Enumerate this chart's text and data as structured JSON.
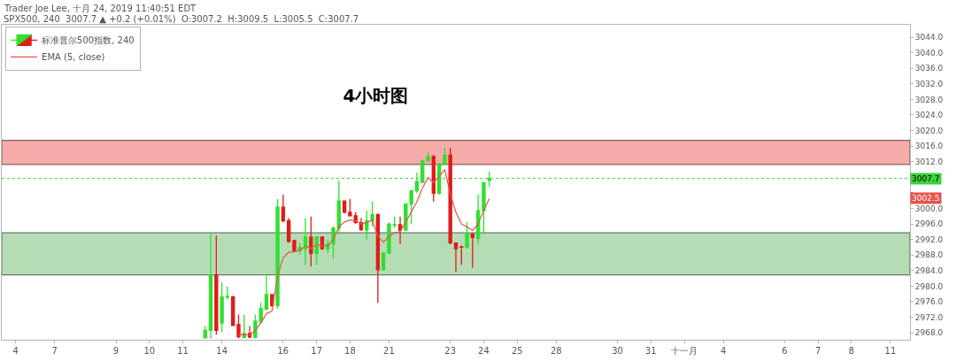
{
  "chart_data": {
    "type": "candlestick",
    "title": "4小时图",
    "annotations": [
      "Trader Joe Lee, 十月 24, 2019 11:40:51 EDT",
      "SPX500, 240  3007.7 ▲ +0.2 (+0.01%)  O:3007.2  H:3009.5  L:3005.5  C:3007.7",
      "3002.5"
    ],
    "categories": [
      null,
      null,
      "4",
      null,
      null,
      null,
      null,
      null,
      null,
      "7",
      null,
      null,
      null,
      null,
      null,
      null,
      null,
      null,
      null,
      null,
      "9",
      null,
      null,
      null,
      null,
      null,
      "10",
      null,
      null,
      null,
      null,
      null,
      "11",
      null,
      null,
      null,
      null,
      null,
      null,
      "14",
      null,
      null,
      null,
      null,
      null,
      null,
      null,
      null,
      null,
      null,
      "16",
      null,
      null,
      null,
      null,
      null,
      "17",
      null,
      null,
      null,
      null,
      null,
      "18",
      null,
      null,
      null,
      null,
      null,
      null,
      "21",
      null,
      null,
      null,
      null,
      null,
      null,
      null,
      null,
      null,
      null,
      "23",
      null,
      null,
      null,
      null,
      null,
      "24",
      null,
      null,
      null,
      null,
      null,
      "25",
      null,
      null,
      null,
      null,
      null,
      null,
      "28",
      null,
      null,
      null,
      null,
      null,
      null,
      null,
      null,
      null,
      null,
      "30",
      null,
      null,
      null,
      null,
      null,
      "31",
      null,
      null,
      null,
      null,
      null,
      "十一月",
      null,
      null,
      null,
      null,
      null,
      null,
      "4",
      null,
      null,
      null,
      null,
      null,
      null,
      null,
      null,
      null,
      null,
      "6",
      null,
      null,
      null,
      null,
      null,
      "7",
      null,
      null,
      null,
      null,
      null,
      "8",
      null,
      null,
      null,
      null,
      null,
      null,
      "11",
      null,
      null,
      null
    ],
    "series": [
      {
        "name": "标准普尔500指数, 240",
        "ohlc": [
          null,
          null,
          null,
          null,
          null,
          null,
          null,
          null,
          null,
          null,
          null,
          null,
          null,
          null,
          null,
          null,
          null,
          null,
          null,
          null,
          null,
          null,
          null,
          null,
          null,
          null,
          null,
          null,
          null,
          null,
          null,
          null,
          null,
          null,
          null,
          null,
          [
            2966.7,
            2969.7,
            2966.6,
            2968.6
          ],
          [
            2968.6,
            2993.4,
            2966.6,
            2982.9
          ],
          [
            2982.9,
            2993.0,
            2967.5,
            2968.6
          ],
          [
            2970.5,
            2981.0,
            2968.2,
            2977.2
          ],
          [
            2977.2,
            2979.9,
            2976.5,
            2977.4
          ],
          [
            2977.2,
            2977.5,
            2969.7,
            2969.9
          ],
          [
            2970.1,
            2972.7,
            2966.6,
            2967.0
          ],
          [
            2966.8,
            2972.7,
            2966.6,
            2967.8
          ],
          [
            2967.8,
            2969.7,
            2966.6,
            2966.9
          ],
          [
            2966.8,
            2972.7,
            2966.6,
            2971.0
          ],
          [
            2970.8,
            2975.7,
            2970.5,
            2974.2
          ],
          [
            2974.1,
            2982.9,
            2973.8,
            2977.8
          ],
          [
            2977.8,
            2978.0,
            2974.6,
            2975.0
          ],
          [
            2975.0,
            3002.4,
            2974.2,
            3000.3
          ],
          [
            3000.3,
            3003.5,
            2996.4,
            2996.8
          ],
          [
            2996.8,
            2997.5,
            2991.1,
            2991.5
          ],
          [
            2991.7,
            2991.9,
            2988.9,
            2989.1
          ],
          [
            2989.1,
            2991.1,
            2988.1,
            2989.9
          ],
          [
            2989.6,
            2997.5,
            2985.5,
            2992.6
          ],
          [
            2992.6,
            2997.9,
            2985.1,
            2988.4
          ],
          [
            2988.4,
            2992.8,
            2985.5,
            2992.6
          ],
          [
            2992.6,
            2992.8,
            2989.3,
            2989.6
          ],
          [
            2989.6,
            2991.9,
            2988.5,
            2990.8
          ],
          [
            2990.8,
            2995.3,
            2987.0,
            2994.9
          ],
          [
            2994.9,
            3007.1,
            2993.4,
            3001.9
          ],
          [
            3001.9,
            3002.0,
            2998.7,
            2999.0
          ],
          [
            2999.0,
            3002.4,
            2997.9,
            2998.1
          ],
          [
            2998.1,
            2999.0,
            2996.0,
            2996.4
          ],
          [
            2996.3,
            2997.5,
            2994.2,
            2994.5
          ],
          [
            2994.4,
            2999.4,
            2991.9,
            2996.8
          ],
          [
            2996.8,
            3001.7,
            2995.3,
            2998.4
          ],
          [
            2998.4,
            2998.6,
            2975.7,
            2984.2
          ],
          [
            2984.2,
            2988.7,
            2984.0,
            2988.5
          ],
          [
            2988.5,
            2996.4,
            2988.1,
            2995.9
          ],
          [
            2995.7,
            2997.9,
            2994.9,
            2995.8
          ],
          [
            2995.8,
            2997.9,
            2990.8,
            2994.4
          ],
          [
            2994.4,
            3001.2,
            2994.2,
            3001.1
          ],
          [
            3001.1,
            3004.7,
            2996.0,
            3004.5
          ],
          [
            3004.5,
            3009.2,
            3003.9,
            3006.9
          ],
          [
            3006.7,
            3012.6,
            3006.6,
            3012.2
          ],
          [
            3012.2,
            3014.5,
            3012.1,
            3013.3
          ],
          [
            3013.3,
            3013.7,
            3001.7,
            3003.9
          ],
          [
            3003.9,
            3011.8,
            3003.5,
            3011.4
          ],
          [
            3011.4,
            3015.6,
            3011.1,
            3013.7
          ],
          [
            3013.7,
            3015.6,
            2990.8,
            2991.1
          ],
          [
            2991.1,
            2991.2,
            2983.6,
            2989.6
          ],
          [
            2990.1,
            2990.4,
            2985.5,
            2990.0
          ],
          [
            2990.0,
            2996.4,
            2989.6,
            2993.6
          ],
          [
            2993.4,
            2993.5,
            2984.7,
            2992.5
          ],
          [
            2992.3,
            3003.5,
            2990.8,
            2999.4
          ],
          [
            2999.4,
            3006.7,
            2993.8,
            3006.6
          ],
          [
            3007.2,
            3009.5,
            3005.5,
            3007.7
          ],
          null,
          null,
          null,
          null,
          null,
          null,
          null,
          null,
          null,
          null,
          null,
          null,
          null,
          null,
          null,
          null,
          null,
          null,
          null,
          null,
          null,
          null,
          null,
          null,
          null,
          null,
          null,
          null,
          null,
          null,
          null,
          null,
          null,
          null,
          null,
          null,
          null,
          null,
          null,
          null,
          null,
          null,
          null,
          null,
          null,
          null,
          null,
          null,
          null,
          null,
          null,
          null,
          null,
          null,
          null,
          null,
          null,
          null,
          null,
          null,
          null,
          null,
          null,
          null,
          null,
          null,
          null,
          null,
          null,
          null,
          null,
          null,
          null,
          null,
          null
        ],
        "colors": [
          null,
          null,
          null,
          null,
          null,
          null,
          null,
          null,
          null,
          null,
          null,
          null,
          null,
          null,
          null,
          null,
          null,
          null,
          null,
          null,
          null,
          null,
          null,
          null,
          null,
          null,
          null,
          null,
          null,
          null,
          null,
          null,
          null,
          null,
          null,
          null,
          "#2fe02f",
          "#2fe02f",
          "#e01b1b",
          "#2fe02f",
          "#2fe02f",
          "#e01b1b",
          "#e01b1b",
          "#2fe02f",
          "#e01b1b",
          "#2fe02f",
          "#2fe02f",
          "#2fe02f",
          "#e01b1b",
          "#2fe02f",
          "#e01b1b",
          "#e01b1b",
          "#e01b1b",
          "#2fe02f",
          "#2fe02f",
          "#e01b1b",
          "#2fe02f",
          "#e01b1b",
          "#2fe02f",
          "#2fe02f",
          "#2fe02f",
          "#e01b1b",
          "#e01b1b",
          "#e01b1b",
          "#e01b1b",
          "#2fe02f",
          "#2fe02f",
          "#e01b1b",
          "#2fe02f",
          "#2fe02f",
          "#2fe02f",
          "#e01b1b",
          "#2fe02f",
          "#2fe02f",
          "#2fe02f",
          "#2fe02f",
          "#2fe02f",
          "#e01b1b",
          "#2fe02f",
          "#2fe02f",
          "#e01b1b",
          "#e01b1b",
          "#e01b1b",
          "#2fe02f",
          "#e01b1b",
          "#2fe02f",
          "#2fe02f",
          "#2fe02f",
          null,
          null,
          null,
          null,
          null,
          null,
          null,
          null,
          null,
          null,
          null,
          null,
          null,
          null,
          null,
          null,
          null,
          null,
          null,
          null,
          null,
          null,
          null,
          null,
          null,
          null,
          null,
          null,
          null,
          null,
          null,
          null,
          null,
          null,
          null,
          null,
          null,
          null,
          null,
          null,
          null,
          null,
          null,
          null,
          null,
          null,
          null,
          null,
          null,
          null,
          null,
          null,
          null,
          null,
          null,
          null,
          null,
          null,
          null,
          null,
          null,
          null,
          null,
          null,
          null,
          null,
          null,
          null,
          null,
          null,
          null,
          null,
          null,
          null,
          null
        ]
      },
      {
        "type": "line",
        "name": "EMA (5, close)",
        "color": "#e8524a",
        "values": [
          null,
          null,
          null,
          null,
          null,
          null,
          null,
          null,
          null,
          null,
          null,
          null,
          null,
          null,
          null,
          null,
          null,
          null,
          null,
          null,
          null,
          null,
          null,
          null,
          null,
          null,
          null,
          null,
          null,
          null,
          null,
          null,
          null,
          null,
          null,
          null,
          null,
          null,
          null,
          null,
          null,
          null,
          2967.5,
          2967.6,
          2967.4,
          2968.6,
          2970.5,
          2972.9,
          2973.6,
          2982.5,
          2987.3,
          2988.7,
          2988.8,
          2989.2,
          2990.3,
          2989.7,
          2990.7,
          2990.3,
          2990.5,
          2992.0,
          2995.3,
          2996.5,
          2997.0,
          2996.8,
          2996.0,
          2996.3,
          2997.0,
          2992.7,
          2991.3,
          2992.8,
          2993.8,
          2994.0,
          2996.4,
          2999.1,
          3001.7,
          3005.2,
          3007.9,
          3006.6,
          3008.2,
          3010.0,
          3003.7,
          2999.0,
          2996.0,
          2995.2,
          2994.3,
          2996.0,
          2999.5,
          3002.5,
          null,
          null,
          null,
          null,
          null,
          null,
          null,
          null,
          null,
          null,
          null,
          null,
          null,
          null,
          null,
          null,
          null,
          null,
          null,
          null,
          null,
          null,
          null,
          null,
          null,
          null,
          null,
          null,
          null,
          null,
          null,
          null,
          null,
          null,
          null,
          null,
          null,
          null,
          null,
          null,
          null,
          null,
          null,
          null,
          null,
          null,
          null,
          null,
          null,
          null,
          null,
          null,
          null,
          null,
          null,
          null,
          null,
          null,
          null,
          null,
          null,
          null,
          null,
          null,
          null,
          null,
          null,
          null,
          null,
          null,
          null,
          null,
          null,
          null,
          null
        ]
      }
    ],
    "ylim": [
      2966.2,
      3047.2
    ],
    "yticks": [
      {
        "value": 2968,
        "label": "2968.0"
      },
      {
        "value": 2972,
        "label": "2972.0"
      },
      {
        "value": 2976,
        "label": "2976.0"
      },
      {
        "value": 2980,
        "label": "2980.0"
      },
      {
        "value": 2984,
        "label": "2984.0"
      },
      {
        "value": 2988,
        "label": "2988.0"
      },
      {
        "value": 2992,
        "label": "2992.0"
      },
      {
        "value": 2996,
        "label": "2996.0"
      },
      {
        "value": 3000,
        "label": "3000.0"
      },
      {
        "value": 3004,
        "label": null
      },
      {
        "value": 3008,
        "label": null
      },
      {
        "value": 3012,
        "label": "3012.0"
      },
      {
        "value": 3016,
        "label": "3016.0"
      },
      {
        "value": 3020,
        "label": "3020.0"
      },
      {
        "value": 3024,
        "label": "3024.0"
      },
      {
        "value": 3028,
        "label": "3028.0"
      },
      {
        "value": 3032,
        "label": "3032.0"
      },
      {
        "value": 3036,
        "label": "3036.0"
      },
      {
        "value": 3040,
        "label": "3040.0"
      },
      {
        "value": 3044,
        "label": "3044.0"
      }
    ],
    "bands": [
      {
        "axis": "y",
        "from": 3011.3,
        "to": 3017.5,
        "color": "#f6aca8"
      },
      {
        "axis": "y",
        "from": 2982.9,
        "to": 2993.7,
        "color": "#b6dcb6"
      }
    ],
    "ref_lines": [
      {
        "axis": "y",
        "value": 3007.7,
        "label": "3007.7",
        "color": "#3cd23c",
        "line_style": "dotted"
      }
    ],
    "legend": "top left"
  }
}
